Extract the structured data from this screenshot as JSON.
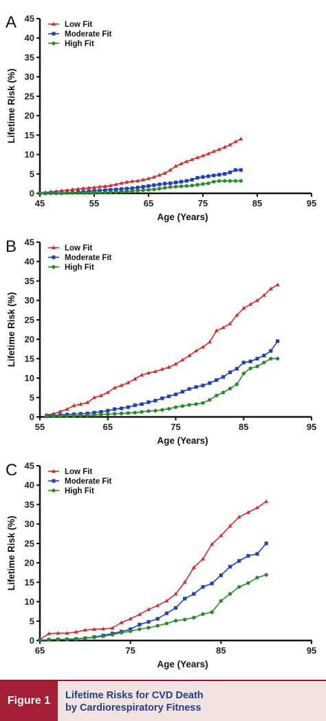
{
  "chart_data": [
    {
      "type": "line",
      "panel": "A",
      "xlabel": "Age (Years)",
      "ylabel": "Lifetime Risk (%)",
      "xlim": [
        45,
        95
      ],
      "ylim": [
        0,
        45
      ],
      "xticks": [
        45,
        55,
        65,
        75,
        85,
        95
      ],
      "yticks": [
        0,
        5,
        10,
        15,
        20,
        25,
        30,
        35,
        40,
        45
      ],
      "legend": "top-left",
      "series": [
        {
          "name": "Low Fit",
          "color": "#d62828",
          "marker": "triangle",
          "x": [
            45,
            46,
            47,
            48,
            49,
            50,
            51,
            52,
            53,
            54,
            55,
            56,
            57,
            58,
            59,
            60,
            61,
            62,
            63,
            64,
            65,
            66,
            67,
            68,
            69,
            70,
            71,
            72,
            73,
            74,
            75,
            76,
            77,
            78,
            79,
            80,
            81,
            82
          ],
          "y": [
            0.1,
            0.2,
            0.4,
            0.5,
            0.7,
            0.8,
            1.0,
            1.1,
            1.3,
            1.4,
            1.5,
            1.7,
            1.8,
            2.0,
            2.3,
            2.6,
            2.9,
            3.1,
            3.2,
            3.5,
            3.8,
            4.2,
            4.7,
            5.2,
            6.0,
            7.0,
            7.6,
            8.2,
            8.7,
            9.2,
            9.7,
            10.2,
            10.8,
            11.3,
            11.9,
            12.5,
            13.3,
            14.0
          ]
        },
        {
          "name": "Moderate Fit",
          "color": "#1f3fbf",
          "marker": "square",
          "x": [
            45,
            46,
            47,
            48,
            49,
            50,
            51,
            52,
            53,
            54,
            55,
            56,
            57,
            58,
            59,
            60,
            61,
            62,
            63,
            64,
            65,
            66,
            67,
            68,
            69,
            70,
            71,
            72,
            73,
            74,
            75,
            76,
            77,
            78,
            79,
            80,
            81,
            82
          ],
          "y": [
            0.0,
            0.0,
            0.1,
            0.1,
            0.1,
            0.2,
            0.2,
            0.3,
            0.4,
            0.5,
            0.6,
            0.7,
            0.8,
            0.9,
            1.0,
            1.1,
            1.2,
            1.3,
            1.5,
            1.7,
            1.9,
            2.1,
            2.3,
            2.5,
            2.6,
            2.8,
            3.0,
            3.2,
            3.5,
            4.0,
            4.2,
            4.4,
            4.6,
            4.8,
            5.0,
            5.4,
            6.0,
            6.0
          ]
        },
        {
          "name": "High Fit",
          "color": "#2a8a2a",
          "marker": "circle",
          "x": [
            45,
            46,
            47,
            48,
            49,
            50,
            51,
            52,
            53,
            54,
            55,
            56,
            57,
            58,
            59,
            60,
            61,
            62,
            63,
            64,
            65,
            66,
            67,
            68,
            69,
            70,
            71,
            72,
            73,
            74,
            75,
            76,
            77,
            78,
            79,
            80,
            81,
            82
          ],
          "y": [
            0.0,
            0.0,
            0.0,
            0.0,
            0.0,
            0.1,
            0.1,
            0.1,
            0.1,
            0.1,
            0.2,
            0.2,
            0.2,
            0.3,
            0.3,
            0.4,
            0.5,
            0.6,
            0.7,
            0.8,
            0.9,
            1.0,
            1.2,
            1.4,
            1.6,
            1.7,
            1.8,
            1.9,
            2.0,
            2.2,
            2.4,
            2.6,
            3.0,
            3.2,
            3.2,
            3.2,
            3.2,
            3.2
          ]
        }
      ]
    },
    {
      "type": "line",
      "panel": "B",
      "xlabel": "Age (Years)",
      "ylabel": "Lifetime Risk (%)",
      "xlim": [
        55,
        95
      ],
      "ylim": [
        0,
        45
      ],
      "xticks": [
        55,
        65,
        75,
        85,
        95
      ],
      "yticks": [
        0,
        5,
        10,
        15,
        20,
        25,
        30,
        35,
        40,
        45
      ],
      "legend": "top-left",
      "series": [
        {
          "name": "Low Fit",
          "color": "#d62828",
          "marker": "triangle",
          "x": [
            56,
            57,
            58,
            59,
            60,
            61,
            62,
            63,
            64,
            65,
            66,
            67,
            68,
            69,
            70,
            71,
            72,
            73,
            74,
            75,
            76,
            77,
            78,
            79,
            80,
            81,
            82,
            83,
            84,
            85,
            86,
            87,
            88,
            89,
            90
          ],
          "y": [
            0.5,
            0.8,
            1.4,
            2.0,
            2.9,
            3.3,
            3.7,
            5.0,
            5.5,
            6.3,
            7.5,
            8.1,
            8.8,
            9.8,
            10.8,
            11.3,
            11.7,
            12.3,
            12.8,
            13.6,
            14.7,
            15.8,
            17.0,
            18.0,
            19.3,
            22.2,
            23.0,
            24.0,
            26.2,
            28.0,
            29.0,
            30.0,
            31.3,
            33.0,
            34.0
          ]
        },
        {
          "name": "Moderate Fit",
          "color": "#1f3fbf",
          "marker": "square",
          "x": [
            56,
            57,
            58,
            59,
            60,
            61,
            62,
            63,
            64,
            65,
            66,
            67,
            68,
            69,
            70,
            71,
            72,
            73,
            74,
            75,
            76,
            77,
            78,
            79,
            80,
            81,
            82,
            83,
            84,
            85,
            86,
            87,
            88,
            89,
            90
          ],
          "y": [
            0.3,
            0.4,
            0.5,
            0.6,
            0.7,
            0.8,
            0.9,
            1.1,
            1.3,
            1.6,
            2.0,
            2.2,
            2.5,
            3.0,
            3.3,
            3.8,
            4.2,
            4.8,
            5.3,
            5.8,
            6.5,
            7.2,
            7.7,
            8.1,
            8.7,
            9.5,
            10.3,
            11.5,
            12.4,
            14.0,
            14.3,
            15.0,
            15.8,
            17.0,
            19.5
          ]
        },
        {
          "name": "High Fit",
          "color": "#2a8a2a",
          "marker": "circle",
          "x": [
            56,
            57,
            58,
            59,
            60,
            61,
            62,
            63,
            64,
            65,
            66,
            67,
            68,
            69,
            70,
            71,
            72,
            73,
            74,
            75,
            76,
            77,
            78,
            79,
            80,
            81,
            82,
            83,
            84,
            85,
            86,
            87,
            88,
            89,
            90
          ],
          "y": [
            0.1,
            0.2,
            0.2,
            0.3,
            0.3,
            0.4,
            0.4,
            0.5,
            0.6,
            0.7,
            0.8,
            0.9,
            1.0,
            1.1,
            1.3,
            1.5,
            1.6,
            1.8,
            2.1,
            2.5,
            2.8,
            3.1,
            3.3,
            3.6,
            4.4,
            5.5,
            6.3,
            7.3,
            8.4,
            11.2,
            12.5,
            13.0,
            14.0,
            15.0,
            15.0
          ]
        }
      ]
    },
    {
      "type": "line",
      "panel": "C",
      "xlabel": "Age (Years)",
      "ylabel": "Lifetime Risk (%)",
      "xlim": [
        65,
        95
      ],
      "ylim": [
        0,
        45
      ],
      "xticks": [
        65,
        75,
        85,
        95
      ],
      "yticks": [
        0,
        5,
        10,
        15,
        20,
        25,
        30,
        35,
        40,
        45
      ],
      "legend": "top-left",
      "series": [
        {
          "name": "Low Fit",
          "color": "#d62828",
          "marker": "triangle",
          "x": [
            65,
            66,
            67,
            68,
            69,
            70,
            71,
            72,
            73,
            74,
            75,
            76,
            77,
            78,
            79,
            80,
            81,
            82,
            83,
            84,
            85,
            86,
            87,
            88,
            89,
            90
          ],
          "y": [
            0.2,
            1.8,
            1.9,
            1.9,
            2.2,
            2.7,
            2.9,
            3.0,
            3.2,
            4.6,
            5.6,
            6.7,
            8.0,
            9.0,
            10.2,
            12.0,
            15.0,
            18.8,
            21.0,
            24.8,
            27.0,
            29.5,
            31.8,
            33.0,
            34.2,
            35.8
          ]
        },
        {
          "name": "Moderate Fit",
          "color": "#1f3fbf",
          "marker": "square",
          "x": [
            65,
            66,
            67,
            68,
            69,
            70,
            71,
            72,
            73,
            74,
            75,
            76,
            77,
            78,
            79,
            80,
            81,
            82,
            83,
            84,
            85,
            86,
            87,
            88,
            89,
            90
          ],
          "y": [
            0.1,
            0.2,
            0.3,
            0.3,
            0.4,
            0.6,
            0.9,
            1.3,
            1.8,
            2.3,
            2.9,
            4.1,
            4.8,
            5.6,
            7.0,
            8.4,
            10.8,
            12.0,
            13.8,
            14.7,
            16.8,
            19.0,
            20.5,
            21.8,
            22.3,
            25.0
          ]
        },
        {
          "name": "High Fit",
          "color": "#2a8a2a",
          "marker": "circle",
          "x": [
            65,
            66,
            67,
            68,
            69,
            70,
            71,
            72,
            73,
            74,
            75,
            76,
            77,
            78,
            79,
            80,
            81,
            82,
            83,
            84,
            85,
            86,
            87,
            88,
            89,
            90
          ],
          "y": [
            0.1,
            0.2,
            0.3,
            0.3,
            0.4,
            0.6,
            0.8,
            1.1,
            1.5,
            2.0,
            2.4,
            2.9,
            3.3,
            3.8,
            4.4,
            5.1,
            5.4,
            5.9,
            6.8,
            7.3,
            10.2,
            12.0,
            13.8,
            14.8,
            16.2,
            16.9
          ]
        }
      ]
    }
  ],
  "footer": {
    "figure_label": "Figure 1",
    "caption_line1": "Lifetime Risks for CVD Death",
    "caption_line2": "by Cardiorespiratory Fitness"
  }
}
